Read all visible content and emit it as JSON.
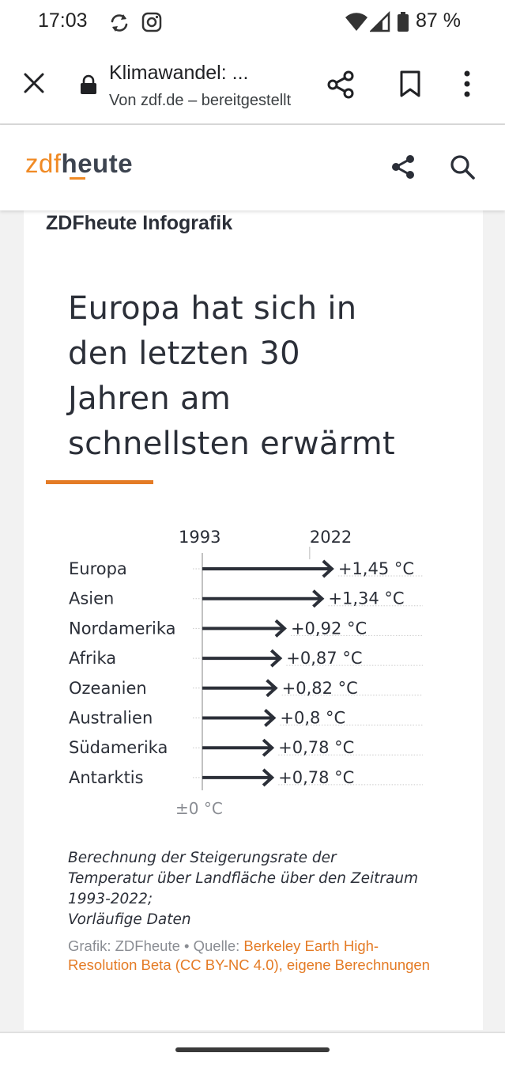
{
  "status_bar": {
    "time": "17:03",
    "battery": "87 %",
    "icons": [
      "sync-icon",
      "instagram-icon",
      "wifi-icon",
      "signal-icon",
      "battery-icon"
    ]
  },
  "browser": {
    "title": "Klimawandel: ...",
    "subtitle": "Von zdf.de – bereitgestellt",
    "icons": [
      "close-icon",
      "lock-icon",
      "share-icon",
      "bookmark-icon",
      "more-icon"
    ]
  },
  "site": {
    "logo_zdf": "zdf",
    "logo_heute": "heute",
    "brand_color": "#f08a24",
    "icons": [
      "share-icon",
      "search-icon"
    ]
  },
  "article": {
    "label": "ZDFheute Infografik",
    "headline_lines": [
      "Europa hat sich in",
      "den letzten 30",
      "Jahren am",
      "schnellsten erwärmt"
    ],
    "accent_color": "#e47b25",
    "footnote_lines": [
      "Berechnung der Steigerungsrate der",
      "Temperatur über Landfläche über den Zeitraum",
      "1993-2022;",
      "Vorläufige Daten"
    ],
    "credit_prefix": "Grafik: ZDFheute • Quelle: ",
    "credit_source": "Berkeley Earth High-Resolution Beta (CC BY-NC 4.0), eigene Berechnungen"
  },
  "chart_data": {
    "type": "bar",
    "start_label": "1993",
    "end_label": "2022",
    "baseline_label": "±0 °C",
    "categories": [
      "Europa",
      "Asien",
      "Nordamerika",
      "Afrika",
      "Ozeanien",
      "Australien",
      "Südamerika",
      "Antarktis"
    ],
    "values": [
      1.45,
      1.34,
      0.92,
      0.87,
      0.82,
      0.8,
      0.78,
      0.78
    ],
    "value_labels": [
      "+1,45 °C",
      "+1,34 °C",
      "+0,92 °C",
      "+0,87 °C",
      "+0,82 °C",
      "+0,8 °C",
      "+0,78 °C",
      "+0,78 °C"
    ],
    "arrow_color": "#2b2f38"
  }
}
